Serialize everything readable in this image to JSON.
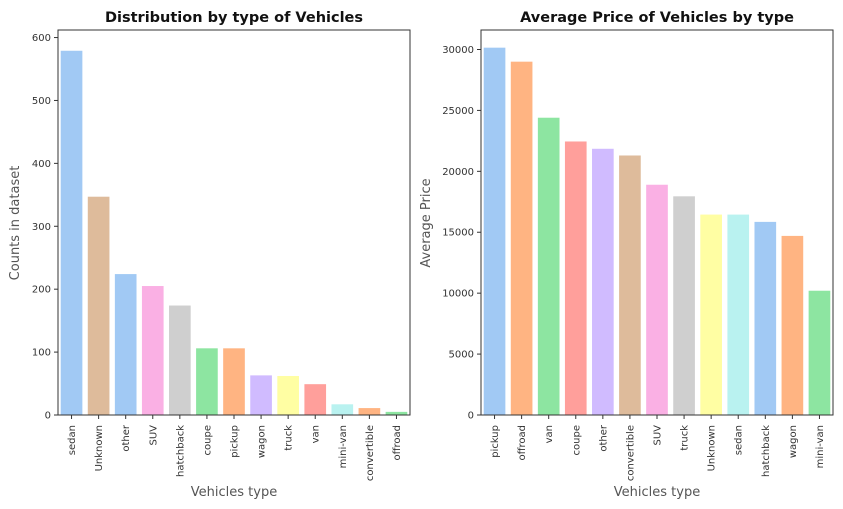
{
  "chart_data": [
    {
      "type": "bar",
      "title": "Distribution by type of Vehicles",
      "xlabel": "Vehicles type",
      "ylabel": "Counts in dataset",
      "ylim": [
        0,
        612
      ],
      "yticks": [
        "0",
        "100",
        "200",
        "300",
        "400",
        "500",
        "600"
      ],
      "categories": [
        "sedan",
        "Unknown",
        "other",
        "SUV",
        "hatchback",
        "coupe",
        "pickup",
        "wagon",
        "truck",
        "van",
        "mini-van",
        "convertible",
        "offroad"
      ],
      "values": [
        579,
        347,
        224,
        205,
        174,
        106,
        106,
        63,
        62,
        49,
        17,
        11,
        5
      ],
      "colors": [
        "#a1c9f4",
        "#debb9b",
        "#a1c9f4",
        "#fab0e4",
        "#cfcfcf",
        "#8de5a1",
        "#ffb482",
        "#d0bbff",
        "#fffea3",
        "#ff9f9b",
        "#b9f2f0",
        "#ffb482",
        "#8de5a1"
      ],
      "grid": false,
      "legend": "none"
    },
    {
      "type": "bar",
      "title": "Average Price of Vehicles by type",
      "xlabel": "Vehicles type",
      "ylabel": "Average Price",
      "ylim": [
        0,
        31600
      ],
      "yticks": [
        "0",
        "5000",
        "10000",
        "15000",
        "20000",
        "25000",
        "30000"
      ],
      "categories": [
        "pickup",
        "offroad",
        "van",
        "coupe",
        "other",
        "convertible",
        "SUV",
        "truck",
        "Unknown",
        "sedan",
        "hatchback",
        "wagon",
        "mini-van"
      ],
      "values": [
        30150,
        29000,
        24400,
        22450,
        21850,
        21300,
        18900,
        17950,
        16450,
        16450,
        15850,
        14700,
        10200
      ],
      "colors": [
        "#a1c9f4",
        "#ffb482",
        "#8de5a1",
        "#ff9f9b",
        "#d0bbff",
        "#debb9b",
        "#fab0e4",
        "#cfcfcf",
        "#fffea3",
        "#b9f2f0",
        "#a1c9f4",
        "#ffb482",
        "#8de5a1"
      ],
      "grid": false,
      "legend": "none"
    }
  ]
}
